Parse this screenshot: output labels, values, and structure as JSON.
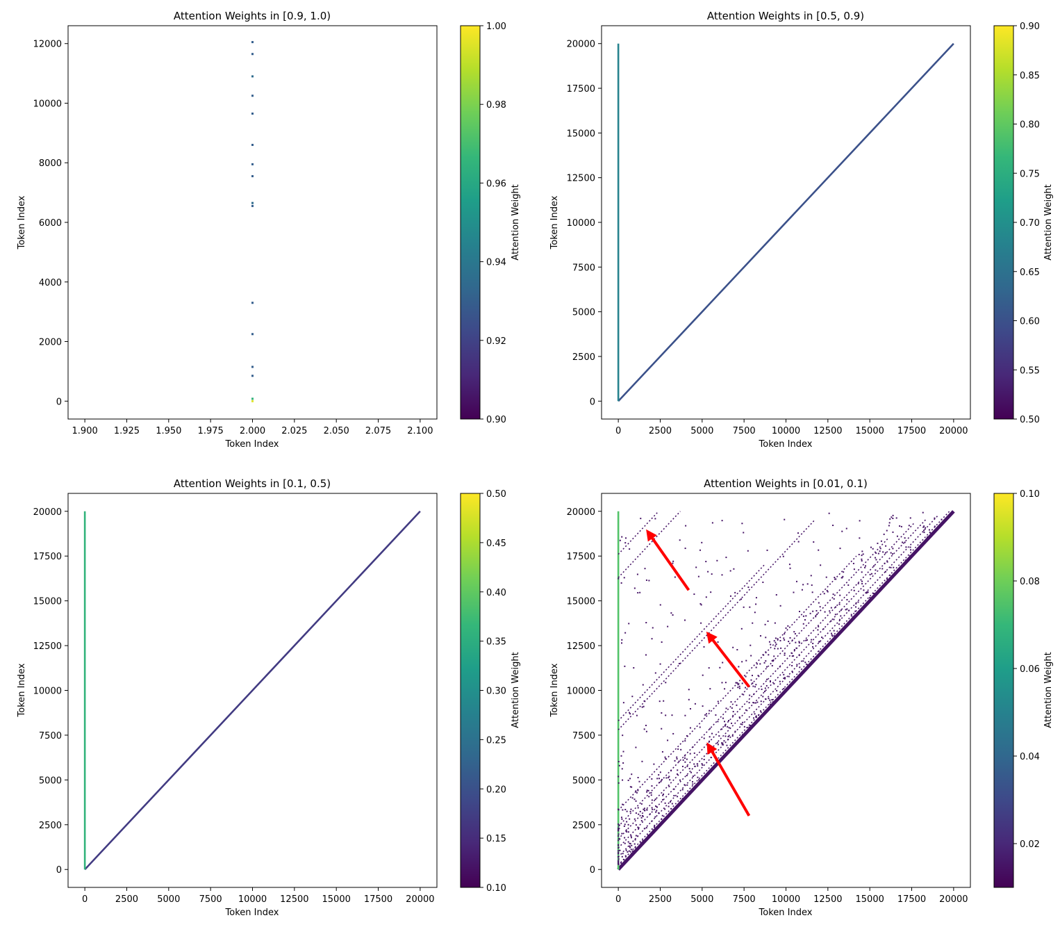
{
  "figure": {
    "annotation_color": "#ff0000",
    "colormap_stops": [
      "#440154",
      "#482878",
      "#3e4989",
      "#31688e",
      "#26828e",
      "#1f9e89",
      "#35b779",
      "#6ece58",
      "#b5de2b",
      "#fde725"
    ]
  },
  "chart_data": [
    {
      "type": "scatter",
      "title": "Attention Weights in [0.9, 1.0)",
      "xlabel": "Token Index",
      "ylabel": "Token Index",
      "xlim": [
        1.89,
        2.11
      ],
      "ylim": [
        12600,
        -600
      ],
      "y_inverted": true,
      "xticks": [
        1.9,
        1.925,
        1.95,
        1.975,
        2.0,
        2.025,
        2.05,
        2.075,
        2.1
      ],
      "xtick_labels": [
        "1.900",
        "1.925",
        "1.950",
        "1.975",
        "2.000",
        "2.025",
        "2.050",
        "2.075",
        "2.100"
      ],
      "yticks": [
        0,
        2000,
        4000,
        6000,
        8000,
        10000,
        12000
      ],
      "ytick_labels": [
        "0",
        "2000",
        "4000",
        "6000",
        "8000",
        "10000",
        "12000"
      ],
      "colorbar": {
        "label": "Attention Weight",
        "vmin": 0.9,
        "vmax": 1.0,
        "ticks": [
          0.9,
          0.92,
          0.94,
          0.96,
          0.98,
          1.0
        ],
        "tick_labels": [
          "0.90",
          "0.92",
          "0.94",
          "0.96",
          "0.98",
          "1.00"
        ]
      },
      "points": [
        {
          "x": 2.0,
          "y": 0,
          "w": 0.995
        },
        {
          "x": 2.0,
          "y": 80,
          "w": 0.965
        },
        {
          "x": 2.0,
          "y": 850,
          "w": 0.93
        },
        {
          "x": 2.0,
          "y": 1150,
          "w": 0.93
        },
        {
          "x": 2.0,
          "y": 2250,
          "w": 0.93
        },
        {
          "x": 2.0,
          "y": 3300,
          "w": 0.93
        },
        {
          "x": 2.0,
          "y": 6550,
          "w": 0.93
        },
        {
          "x": 2.0,
          "y": 6650,
          "w": 0.935
        },
        {
          "x": 2.0,
          "y": 7550,
          "w": 0.93
        },
        {
          "x": 2.0,
          "y": 7950,
          "w": 0.93
        },
        {
          "x": 2.0,
          "y": 8600,
          "w": 0.93
        },
        {
          "x": 2.0,
          "y": 9650,
          "w": 0.93
        },
        {
          "x": 2.0,
          "y": 10250,
          "w": 0.93
        },
        {
          "x": 2.0,
          "y": 10900,
          "w": 0.935
        },
        {
          "x": 2.0,
          "y": 11650,
          "w": 0.93
        },
        {
          "x": 2.0,
          "y": 12050,
          "w": 0.93
        }
      ]
    },
    {
      "type": "scatter",
      "title": "Attention Weights in [0.5, 0.9)",
      "xlabel": "Token Index",
      "ylabel": "Token Index",
      "xlim": [
        -1000,
        21000
      ],
      "ylim": [
        21000,
        -1000
      ],
      "y_inverted": true,
      "xticks": [
        0,
        2500,
        5000,
        7500,
        10000,
        12500,
        15000,
        17500,
        20000
      ],
      "xtick_labels": [
        "0",
        "2500",
        "5000",
        "7500",
        "10000",
        "12500",
        "15000",
        "17500",
        "20000"
      ],
      "yticks": [
        0,
        2500,
        5000,
        7500,
        10000,
        12500,
        15000,
        17500,
        20000
      ],
      "ytick_labels": [
        "0",
        "2500",
        "5000",
        "7500",
        "10000",
        "12500",
        "15000",
        "17500",
        "20000"
      ],
      "colorbar": {
        "label": "Attention Weight",
        "vmin": 0.5,
        "vmax": 0.9,
        "ticks": [
          0.5,
          0.55,
          0.6,
          0.65,
          0.7,
          0.75,
          0.8,
          0.85,
          0.9
        ],
        "tick_labels": [
          "0.50",
          "0.55",
          "0.60",
          "0.65",
          "0.70",
          "0.75",
          "0.80",
          "0.85",
          "0.90"
        ]
      },
      "patterns": [
        {
          "kind": "diagonal",
          "from": 0,
          "to": 20000,
          "w": 0.6
        },
        {
          "kind": "column",
          "x": 0,
          "from": 0,
          "to": 20000,
          "w": 0.68
        }
      ]
    },
    {
      "type": "scatter",
      "title": "Attention Weights in [0.1, 0.5)",
      "xlabel": "Token Index",
      "ylabel": "Token Index",
      "xlim": [
        -1000,
        21000
      ],
      "ylim": [
        21000,
        -1000
      ],
      "y_inverted": true,
      "xticks": [
        0,
        2500,
        5000,
        7500,
        10000,
        12500,
        15000,
        17500,
        20000
      ],
      "xtick_labels": [
        "0",
        "2500",
        "5000",
        "7500",
        "10000",
        "12500",
        "15000",
        "17500",
        "20000"
      ],
      "yticks": [
        0,
        2500,
        5000,
        7500,
        10000,
        12500,
        15000,
        17500,
        20000
      ],
      "ytick_labels": [
        "0",
        "2500",
        "5000",
        "7500",
        "10000",
        "12500",
        "15000",
        "17500",
        "20000"
      ],
      "colorbar": {
        "label": "Attention Weight",
        "vmin": 0.1,
        "vmax": 0.5,
        "ticks": [
          0.1,
          0.15,
          0.2,
          0.25,
          0.3,
          0.35,
          0.4,
          0.45,
          0.5
        ],
        "tick_labels": [
          "0.10",
          "0.15",
          "0.20",
          "0.25",
          "0.30",
          "0.35",
          "0.40",
          "0.45",
          "0.50"
        ]
      },
      "patterns": [
        {
          "kind": "diagonal",
          "from": 0,
          "to": 20000,
          "w": 0.17
        },
        {
          "kind": "column",
          "x": 0,
          "from": 0,
          "to": 20000,
          "w": 0.36
        }
      ]
    },
    {
      "type": "scatter",
      "title": "Attention Weights in [0.01, 0.1)",
      "xlabel": "Token Index",
      "ylabel": "Token Index",
      "xlim": [
        -1000,
        21000
      ],
      "ylim": [
        21000,
        -1000
      ],
      "y_inverted": true,
      "xticks": [
        0,
        2500,
        5000,
        7500,
        10000,
        12500,
        15000,
        17500,
        20000
      ],
      "xtick_labels": [
        "0",
        "2500",
        "5000",
        "7500",
        "10000",
        "12500",
        "15000",
        "17500",
        "20000"
      ],
      "yticks": [
        0,
        2500,
        5000,
        7500,
        10000,
        12500,
        15000,
        17500,
        20000
      ],
      "ytick_labels": [
        "0",
        "2500",
        "5000",
        "7500",
        "10000",
        "12500",
        "15000",
        "17500",
        "20000"
      ],
      "colorbar": {
        "label": "Attention Weight",
        "vmin": 0.01,
        "vmax": 0.1,
        "ticks": [
          0.02,
          0.04,
          0.06,
          0.08,
          0.1
        ],
        "tick_labels": [
          "0.02",
          "0.04",
          "0.06",
          "0.08",
          "0.10"
        ]
      },
      "patterns": [
        {
          "kind": "diagonal",
          "from": 0,
          "to": 20000,
          "w": 0.015
        },
        {
          "kind": "column",
          "x": 0,
          "from": 0,
          "to": 20000,
          "w": 0.075
        },
        {
          "kind": "offset_diagonal",
          "offset": 250,
          "from": 250,
          "to": 20000,
          "w": 0.015
        },
        {
          "kind": "offset_diagonal",
          "offset": 700,
          "from": 700,
          "to": 19800,
          "w": 0.015
        },
        {
          "kind": "offset_diagonal",
          "offset": 1200,
          "from": 1200,
          "to": 19600,
          "w": 0.015
        },
        {
          "kind": "offset_diagonal",
          "offset": 1700,
          "from": 1700,
          "to": 19400,
          "w": 0.015
        },
        {
          "kind": "offset_diagonal",
          "offset": 2400,
          "from": 2400,
          "to": 18500,
          "w": 0.015
        },
        {
          "kind": "offset_diagonal",
          "offset": 3300,
          "from": 3300,
          "to": 17500,
          "w": 0.015
        },
        {
          "kind": "offset_diagonal",
          "offset": 7800,
          "from": 7800,
          "to": 19500,
          "w": 0.015
        },
        {
          "kind": "offset_diagonal",
          "offset": 8300,
          "from": 8300,
          "to": 17000,
          "w": 0.015
        },
        {
          "kind": "offset_diagonal",
          "offset": 16300,
          "from": 16300,
          "to": 20000,
          "w": 0.015
        },
        {
          "kind": "offset_diagonal",
          "offset": 17600,
          "from": 17600,
          "to": 20000,
          "w": 0.015
        }
      ],
      "annotations": [
        {
          "kind": "arrow",
          "from": [
            7800,
            3000
          ],
          "to": [
            5400,
            6900
          ]
        },
        {
          "kind": "arrow",
          "from": [
            7800,
            10200
          ],
          "to": [
            5400,
            13100
          ]
        },
        {
          "kind": "arrow",
          "from": [
            4200,
            15600
          ],
          "to": [
            1800,
            18800
          ]
        }
      ]
    }
  ]
}
